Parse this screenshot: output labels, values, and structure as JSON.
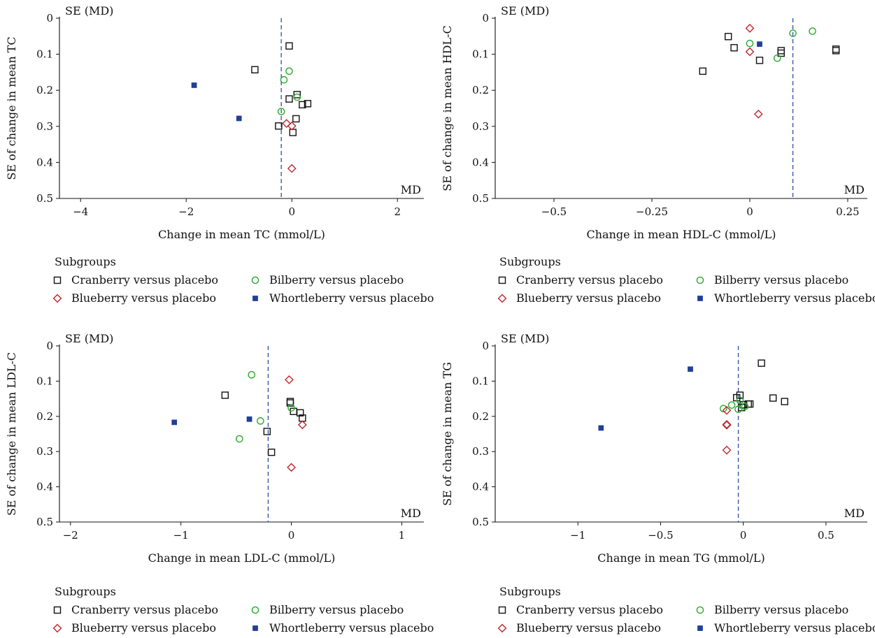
{
  "chart_data": [
    {
      "type": "scatter",
      "panel": "TC",
      "title": "",
      "xlabel": "Change in mean TC (mmol/L)",
      "ylabel": "SE of change in mean TC",
      "corner_label": "SE (MD)",
      "axis_end_label": "MD",
      "xlim": [
        -4.4,
        2.5
      ],
      "ylim": [
        0,
        0.5
      ],
      "y_inverted": true,
      "xticks": [
        -4,
        -2,
        0,
        2
      ],
      "xtick_labels": [
        "−4",
        "−2",
        "0",
        "2"
      ],
      "yticks": [
        0,
        0.1,
        0.2,
        0.3,
        0.4,
        0.5
      ],
      "ytick_labels": [
        "0",
        "0.1",
        "0.2",
        "0.3",
        "0.4",
        "0.5"
      ],
      "pooled_md": -0.2,
      "legend_title": "Subgroups",
      "series": [
        {
          "name": "Cranberry versus placebo",
          "marker": "open-square",
          "color": "#111111",
          "points": [
            [
              -0.05,
              0.077
            ],
            [
              -0.7,
              0.143
            ],
            [
              -0.05,
              0.224
            ],
            [
              0.1,
              0.212
            ],
            [
              0.3,
              0.237
            ],
            [
              0.2,
              0.24
            ],
            [
              0.08,
              0.279
            ],
            [
              -0.25,
              0.299
            ],
            [
              0.02,
              0.317
            ]
          ]
        },
        {
          "name": "Bilberry versus placebo",
          "marker": "open-circle",
          "color": "#2aa82a",
          "points": [
            [
              -0.05,
              0.147
            ],
            [
              -0.15,
              0.171
            ],
            [
              0.1,
              0.219
            ],
            [
              -0.2,
              0.259
            ]
          ]
        },
        {
          "name": "Blueberry versus placebo",
          "marker": "open-diamond",
          "color": "#c0272d",
          "points": [
            [
              -0.1,
              0.292
            ],
            [
              0.0,
              0.299
            ],
            [
              0.0,
              0.417
            ]
          ]
        },
        {
          "name": "Whortleberry versus placebo",
          "marker": "filled-square",
          "color": "#1f3f99",
          "points": [
            [
              -1.85,
              0.186
            ],
            [
              -1.0,
              0.278
            ]
          ]
        }
      ]
    },
    {
      "type": "scatter",
      "panel": "HDL-C",
      "title": "",
      "xlabel": "Change in mean HDL-C (mmol/L)",
      "ylabel": "SE of change in mean HDL-C",
      "corner_label": "SE (MD)",
      "axis_end_label": "MD",
      "xlim": [
        -0.65,
        0.3
      ],
      "ylim": [
        0,
        0.5
      ],
      "y_inverted": true,
      "xticks": [
        -0.5,
        -0.25,
        0,
        0.25
      ],
      "xtick_labels": [
        "−0.5",
        "−0.25",
        "0",
        "0.25"
      ],
      "yticks": [
        0,
        0.1,
        0.2,
        0.3,
        0.4,
        0.5
      ],
      "ytick_labels": [
        "0",
        "0.1",
        "0.2",
        "0.3",
        "0.4",
        "0.5"
      ],
      "pooled_md": 0.11,
      "legend_title": "Subgroups",
      "series": [
        {
          "name": "Cranberry versus placebo",
          "marker": "open-square",
          "color": "#111111",
          "points": [
            [
              -0.055,
              0.051
            ],
            [
              -0.04,
              0.082
            ],
            [
              0.08,
              0.09
            ],
            [
              0.08,
              0.097
            ],
            [
              0.22,
              0.086
            ],
            [
              0.22,
              0.09
            ],
            [
              0.025,
              0.117
            ],
            [
              -0.12,
              0.147
            ]
          ]
        },
        {
          "name": "Bilberry versus placebo",
          "marker": "open-circle",
          "color": "#2aa82a",
          "points": [
            [
              0.0,
              0.07
            ],
            [
              0.07,
              0.111
            ],
            [
              0.11,
              0.042
            ],
            [
              0.16,
              0.036
            ]
          ]
        },
        {
          "name": "Blueberry versus placebo",
          "marker": "open-diamond",
          "color": "#c0272d",
          "points": [
            [
              0.0,
              0.028
            ],
            [
              0.0,
              0.093
            ],
            [
              0.022,
              0.266
            ]
          ]
        },
        {
          "name": "Whortleberry versus placebo",
          "marker": "filled-square",
          "color": "#1f3f99",
          "points": [
            [
              0.025,
              0.072
            ]
          ]
        }
      ]
    },
    {
      "type": "scatter",
      "panel": "LDL-C",
      "title": "",
      "xlabel": "Change in mean LDL-C (mmol/L)",
      "ylabel": "SE of change in mean LDL-C",
      "corner_label": "SE (MD)",
      "axis_end_label": "MD",
      "xlim": [
        -2.1,
        1.2
      ],
      "ylim": [
        0,
        0.5
      ],
      "y_inverted": true,
      "xticks": [
        -2,
        -1,
        0,
        1
      ],
      "xtick_labels": [
        "−2",
        "−1",
        "0",
        "1"
      ],
      "yticks": [
        0,
        0.1,
        0.2,
        0.3,
        0.4,
        0.5
      ],
      "ytick_labels": [
        "0",
        "0.1",
        "0.2",
        "0.3",
        "0.4",
        "0.5"
      ],
      "pooled_md": -0.21,
      "legend_title": "Subgroups",
      "series": [
        {
          "name": "Cranberry versus placebo",
          "marker": "open-square",
          "color": "#111111",
          "points": [
            [
              -0.6,
              0.14
            ],
            [
              -0.01,
              0.158
            ],
            [
              -0.01,
              0.162
            ],
            [
              0.02,
              0.186
            ],
            [
              0.08,
              0.19
            ],
            [
              0.1,
              0.205
            ],
            [
              -0.22,
              0.243
            ],
            [
              -0.18,
              0.302
            ]
          ]
        },
        {
          "name": "Bilberry versus placebo",
          "marker": "open-circle",
          "color": "#2aa82a",
          "points": [
            [
              -0.36,
              0.082
            ],
            [
              0.0,
              0.176
            ],
            [
              -0.28,
              0.213
            ],
            [
              -0.47,
              0.264
            ]
          ]
        },
        {
          "name": "Blueberry versus placebo",
          "marker": "open-diamond",
          "color": "#c0272d",
          "points": [
            [
              -0.02,
              0.096
            ],
            [
              0.1,
              0.224
            ],
            [
              0.0,
              0.345
            ]
          ]
        },
        {
          "name": "Whortleberry versus placebo",
          "marker": "filled-square",
          "color": "#1f3f99",
          "points": [
            [
              -1.06,
              0.217
            ],
            [
              -0.38,
              0.208
            ]
          ]
        }
      ]
    },
    {
      "type": "scatter",
      "panel": "TG",
      "title": "",
      "xlabel": "Change in mean TG (mmol/L)",
      "ylabel": "SE of change in mean TG",
      "corner_label": "SE (MD)",
      "axis_end_label": "MD",
      "xlim": [
        -1.5,
        0.75
      ],
      "ylim": [
        0,
        0.5
      ],
      "y_inverted": true,
      "xticks": [
        -1,
        -0.5,
        0,
        0.5
      ],
      "xtick_labels": [
        "−1",
        "−0.5",
        "0",
        "0.5"
      ],
      "yticks": [
        0,
        0.1,
        0.2,
        0.3,
        0.4,
        0.5
      ],
      "ytick_labels": [
        "0",
        "0.1",
        "0.2",
        "0.3",
        "0.4",
        "0.5"
      ],
      "pooled_md": -0.03,
      "legend_title": "Subgroups",
      "series": [
        {
          "name": "Cranberry versus placebo",
          "marker": "open-square",
          "color": "#111111",
          "points": [
            [
              0.11,
              0.049
            ],
            [
              -0.04,
              0.147
            ],
            [
              -0.02,
              0.14
            ],
            [
              0.0,
              0.167
            ],
            [
              0.03,
              0.165
            ],
            [
              0.04,
              0.165
            ],
            [
              0.18,
              0.148
            ],
            [
              0.25,
              0.158
            ],
            [
              -0.01,
              0.175
            ]
          ]
        },
        {
          "name": "Bilberry versus placebo",
          "marker": "open-circle",
          "color": "#2aa82a",
          "points": [
            [
              -0.12,
              0.178
            ],
            [
              -0.07,
              0.168
            ],
            [
              -0.02,
              0.155
            ],
            [
              0.01,
              0.172
            ],
            [
              -0.03,
              0.18
            ]
          ]
        },
        {
          "name": "Blueberry versus placebo",
          "marker": "open-diamond",
          "color": "#c0272d",
          "points": [
            [
              -0.1,
              0.183
            ],
            [
              -0.1,
              0.223
            ],
            [
              -0.1,
              0.225
            ],
            [
              -0.1,
              0.296
            ]
          ]
        },
        {
          "name": "Whortleberry versus placebo",
          "marker": "filled-square",
          "color": "#1f3f99",
          "points": [
            [
              -0.32,
              0.066
            ],
            [
              -0.86,
              0.233
            ]
          ]
        }
      ]
    }
  ]
}
